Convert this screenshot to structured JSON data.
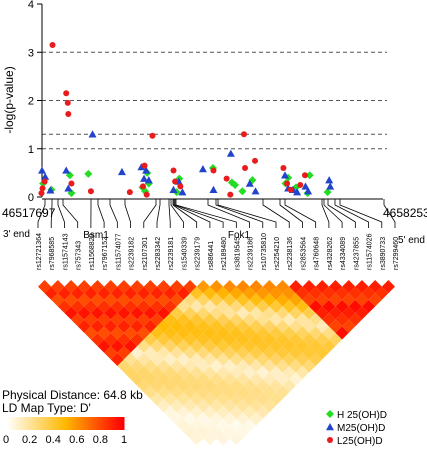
{
  "chart_data": {
    "type": "scatter",
    "ylabel": "-log(p-value)",
    "yticks": [
      "0",
      "1",
      "2",
      "3",
      "4"
    ],
    "ylim": [
      0,
      4
    ],
    "xlim": [
      46517697,
      46582535
    ],
    "reference_lines": [
      1,
      1.3,
      2,
      3
    ],
    "grid": false,
    "region_start": "46517697",
    "region_end": "46582535",
    "end_3": "3' end",
    "end_5": "5' end",
    "genes": [
      {
        "name": "Bsm1",
        "label_x": 96
      },
      {
        "name": "Fok1",
        "label_x": 239
      }
    ],
    "snps": [
      "rs12721364",
      "rs7968585",
      "rs11574143",
      "rs757343",
      "rs10735810x",
      "rs7967152",
      "rs11574077",
      "rs2239182",
      "rs2107301",
      "rs2283342",
      "rs2239181",
      "rs1540339",
      "rs2239179",
      "rs886441",
      "rs2189480",
      "rs3819545",
      "rs2239186",
      "rs10783210",
      "rs2254210",
      "rs2238136",
      "rs2853564",
      "rs4760648",
      "rs4328262",
      "rs4334089",
      "rs4237855",
      "rs11574026",
      "rs3890733",
      "rs7299460"
    ],
    "snps_display": [
      "rs12721364",
      "rs7968585",
      "rs11574143",
      "rs757343",
      "rs11568820",
      "rs7967152",
      "rs11574077",
      "rs2239182",
      "rs2107301",
      "rs2283342",
      "rs2239181",
      "rs1540339",
      "rs2239179",
      "rs886441",
      "rs2189480",
      "rs3819545",
      "rs2239186",
      "rs10735810",
      "rs2254210",
      "rs2238136",
      "rs2853564",
      "rs4760648",
      "rs4328262",
      "rs4334089",
      "rs4237855",
      "rs11574026",
      "rs3890733",
      "rs7299460"
    ],
    "legend": [
      {
        "label": "H 25(OH)D",
        "shape": "diamond",
        "color": "#22dd22"
      },
      {
        "label": "M25(OH)D",
        "shape": "triangle",
        "color": "#2244cc"
      },
      {
        "label": "L25(OH)D",
        "shape": "circle",
        "color": "#e81c1c"
      }
    ],
    "physical_distance": "Physical Distance: 64.8 kb",
    "ld_map_type": "LD Map Type: D'",
    "colorbar": {
      "ticks": [
        "0",
        "0.2",
        "0.4",
        "0.6",
        "0.8",
        "1"
      ],
      "low_color": "#ffffff",
      "high_color": "#ff0000"
    },
    "series": [
      {
        "name": "H 25(OH)D",
        "points": [
          {
            "x": 46517900,
            "y": 0.28
          },
          {
            "x": 46519500,
            "y": 0.15
          },
          {
            "x": 46523000,
            "y": 0.45
          },
          {
            "x": 46523300,
            "y": 0.08
          },
          {
            "x": 46526500,
            "y": 0.48
          },
          {
            "x": 46536800,
            "y": 0.2
          },
          {
            "x": 46537300,
            "y": 0.12
          },
          {
            "x": 46538000,
            "y": 0.28
          },
          {
            "x": 46537700,
            "y": 0.5
          },
          {
            "x": 46543300,
            "y": 0.1
          },
          {
            "x": 46543800,
            "y": 0.38
          },
          {
            "x": 46550200,
            "y": 0.6
          },
          {
            "x": 46553800,
            "y": 0.3
          },
          {
            "x": 46554400,
            "y": 0.25
          },
          {
            "x": 46555800,
            "y": 0.12
          },
          {
            "x": 46557700,
            "y": 0.35
          },
          {
            "x": 46564000,
            "y": 0.28
          },
          {
            "x": 46564500,
            "y": 0.4
          },
          {
            "x": 46566000,
            "y": 0.2
          },
          {
            "x": 46568600,
            "y": 0.45
          },
          {
            "x": 46568200,
            "y": 0.08
          },
          {
            "x": 46572000,
            "y": 0.1
          }
        ]
      },
      {
        "name": "M25(OH)D",
        "points": [
          {
            "x": 46517700,
            "y": 0.55
          },
          {
            "x": 46518300,
            "y": 0.42
          },
          {
            "x": 46519300,
            "y": 0.14
          },
          {
            "x": 46522300,
            "y": 0.55
          },
          {
            "x": 46522700,
            "y": 0.18
          },
          {
            "x": 46527300,
            "y": 1.3
          },
          {
            "x": 46532900,
            "y": 0.52
          },
          {
            "x": 46536600,
            "y": 0.62
          },
          {
            "x": 46537100,
            "y": 0.38
          },
          {
            "x": 46537500,
            "y": 0.55
          },
          {
            "x": 46538000,
            "y": 0.35
          },
          {
            "x": 46542700,
            "y": 0.15
          },
          {
            "x": 46543700,
            "y": 0.32
          },
          {
            "x": 46544400,
            "y": 0.1
          },
          {
            "x": 46548300,
            "y": 0.58
          },
          {
            "x": 46550300,
            "y": 0.15
          },
          {
            "x": 46553600,
            "y": 0.9
          },
          {
            "x": 46557200,
            "y": 0.28
          },
          {
            "x": 46558300,
            "y": 0.12
          },
          {
            "x": 46563900,
            "y": 0.45
          },
          {
            "x": 46564500,
            "y": 0.18
          },
          {
            "x": 46565400,
            "y": 0.15
          },
          {
            "x": 46566200,
            "y": 0.1
          },
          {
            "x": 46567800,
            "y": 0.22
          },
          {
            "x": 46568300,
            "y": 0.12
          },
          {
            "x": 46572300,
            "y": 0.35
          },
          {
            "x": 46572500,
            "y": 0.22
          }
        ]
      },
      {
        "name": "L25(OH)D",
        "points": [
          {
            "x": 46517800,
            "y": 0.18
          },
          {
            "x": 46518200,
            "y": 0.32
          },
          {
            "x": 46517600,
            "y": 0.08
          },
          {
            "x": 46519700,
            "y": 3.15
          },
          {
            "x": 46522300,
            "y": 2.15
          },
          {
            "x": 46522600,
            "y": 1.95
          },
          {
            "x": 46522700,
            "y": 1.72
          },
          {
            "x": 46523300,
            "y": 0.28
          },
          {
            "x": 46527000,
            "y": 0.12
          },
          {
            "x": 46534400,
            "y": 0.1
          },
          {
            "x": 46536900,
            "y": 0.22
          },
          {
            "x": 46537200,
            "y": 0.65
          },
          {
            "x": 46537600,
            "y": 0.05
          },
          {
            "x": 46538700,
            "y": 1.27
          },
          {
            "x": 46542700,
            "y": 0.55
          },
          {
            "x": 46543000,
            "y": 0.32
          },
          {
            "x": 46544000,
            "y": 0.22
          },
          {
            "x": 46550300,
            "y": 0.55
          },
          {
            "x": 46552800,
            "y": 0.38
          },
          {
            "x": 46553500,
            "y": 0.05
          },
          {
            "x": 46556100,
            "y": 1.3
          },
          {
            "x": 46556300,
            "y": 0.6
          },
          {
            "x": 46558200,
            "y": 0.75
          },
          {
            "x": 46563600,
            "y": 0.6
          },
          {
            "x": 46564300,
            "y": 0.28
          },
          {
            "x": 46565000,
            "y": 0.15
          },
          {
            "x": 46566800,
            "y": 0.25
          },
          {
            "x": 46567700,
            "y": 0.45
          }
        ]
      }
    ]
  }
}
